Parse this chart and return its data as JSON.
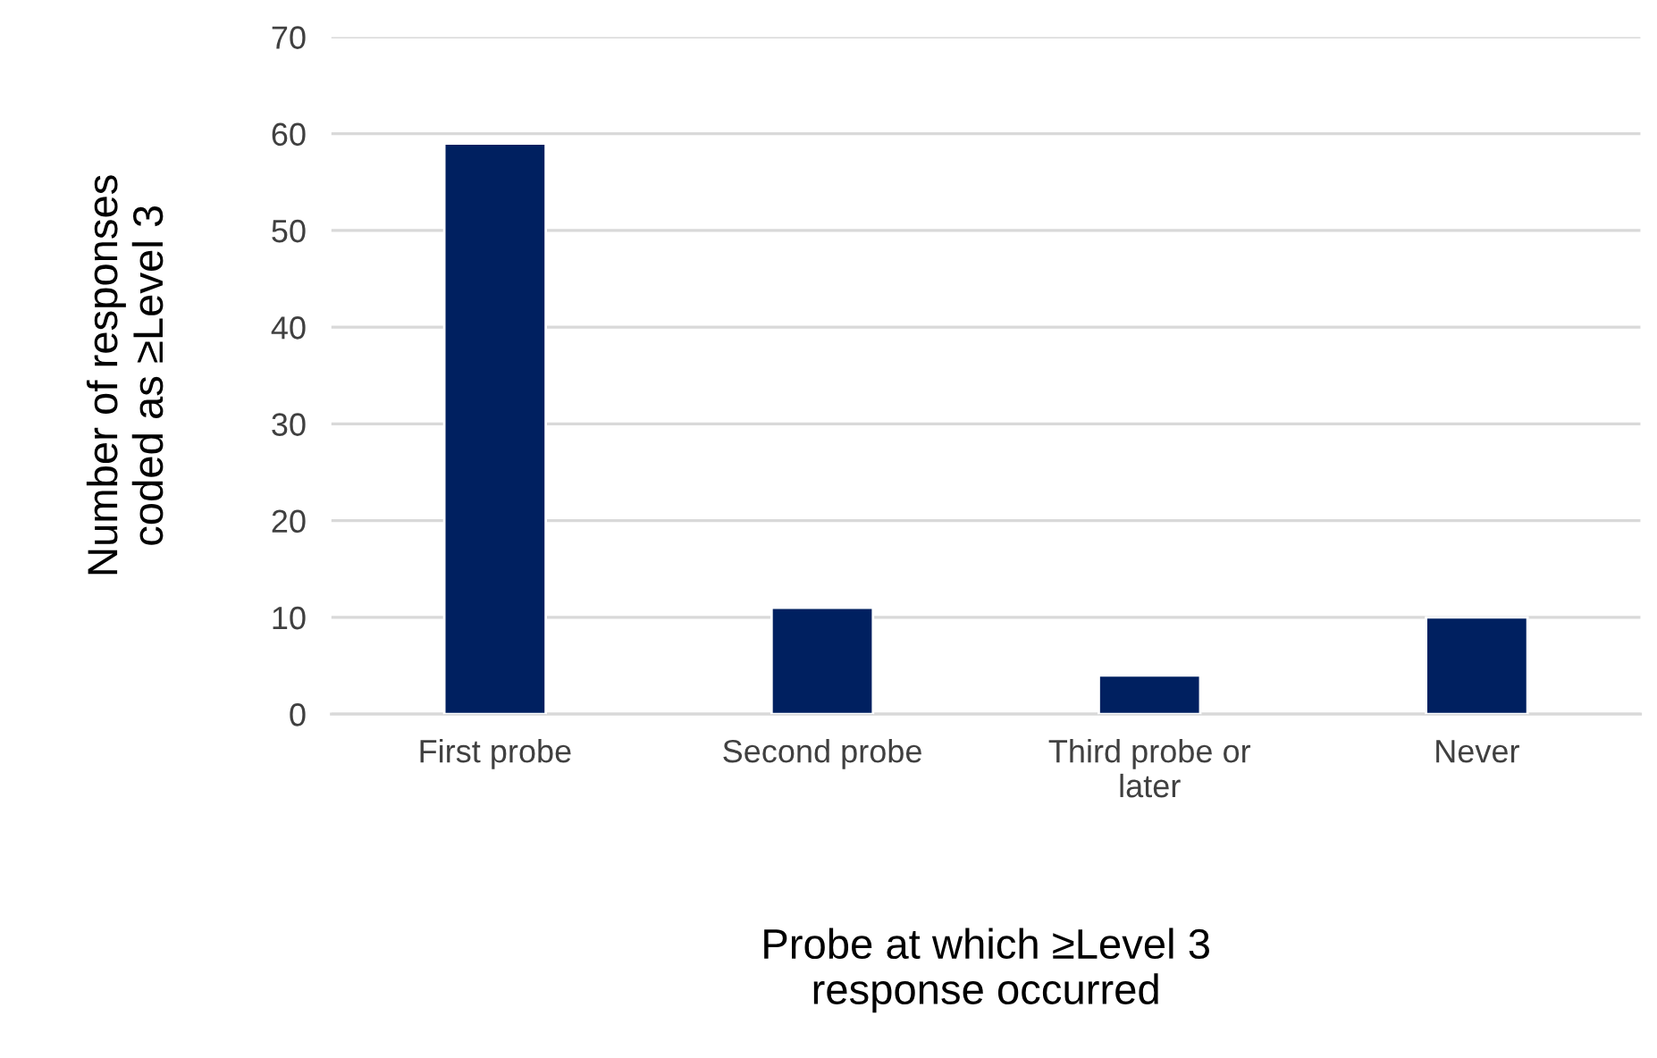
{
  "chart_data": {
    "type": "bar",
    "categories": [
      "First probe",
      "Second probe",
      "Third probe or\nlater",
      "Never"
    ],
    "values": [
      59,
      11,
      4,
      10
    ],
    "color": "#002060",
    "xlabel": "Probe at which ≥Level 3\nresponse occurred",
    "ylabel": "Number of responses\ncoded as ≥Level 3",
    "ylim": [
      0,
      70
    ],
    "yticks": [
      0,
      10,
      20,
      30,
      40,
      50,
      60,
      70
    ],
    "grid": "y",
    "legend": false
  }
}
